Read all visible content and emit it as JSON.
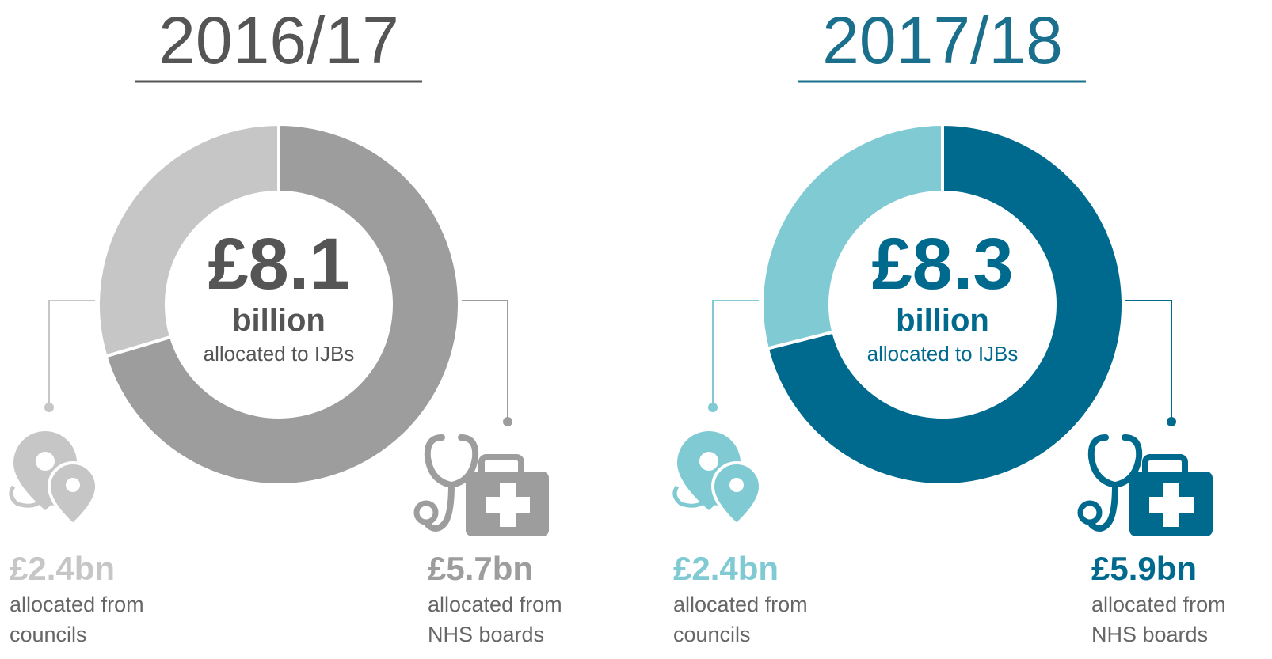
{
  "chart_data": [
    {
      "type": "donut",
      "title": "2016/17",
      "title_color": "#555555",
      "center_value": "£8.1",
      "center_unit": "billion",
      "center_caption": "allocated to IJBs",
      "center_color": "#555555",
      "values": [
        2.4,
        5.7
      ],
      "value_labels": [
        "£2.4bn",
        "£5.7bn"
      ],
      "labels": [
        [
          "allocated from",
          "councils"
        ],
        [
          "allocated from",
          "NHS boards"
        ]
      ],
      "colors": [
        "#c6c6c6",
        "#9d9d9d"
      ]
    },
    {
      "type": "donut",
      "title": "2017/18",
      "title_color": "#1a6f8c",
      "center_value": "£8.3",
      "center_unit": "billion",
      "center_caption": "allocated to IJBs",
      "center_color": "#006a8e",
      "values": [
        2.4,
        5.9
      ],
      "value_labels": [
        "£2.4bn",
        "£5.9bn"
      ],
      "labels": [
        [
          "allocated from",
          "councils"
        ],
        [
          "allocated from",
          "NHS boards"
        ]
      ],
      "colors": [
        "#80cad4",
        "#006a8e"
      ]
    }
  ]
}
